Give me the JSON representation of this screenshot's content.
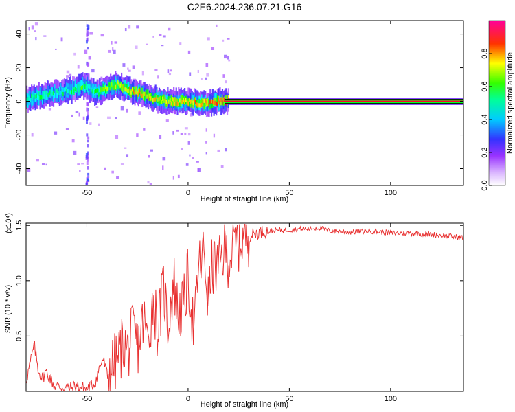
{
  "title": "C2E6.2024.236.07.21.G16",
  "chart_data": [
    {
      "type": "heatmap",
      "xlabel": "Height of straight line (km)",
      "ylabel": "Frequency (Hz)",
      "xlim": [
        -80,
        136
      ],
      "ylim": [
        -50,
        48
      ],
      "x_ticks": [
        -50,
        0,
        50,
        100
      ],
      "y_ticks": [
        -40,
        -20,
        0,
        20,
        40
      ],
      "colorbar": {
        "label": "Normalized spectral amplitude",
        "range": [
          0,
          1
        ],
        "ticks": [
          "0.0",
          "0.2",
          "0.4",
          "0.6",
          "0.8"
        ],
        "tick_values": [
          0,
          0.2,
          0.4,
          0.6,
          0.8
        ],
        "colors": [
          "#ffffff",
          "#a64dff",
          "#3333ff",
          "#00ffff",
          "#00ff00",
          "#ffff00",
          "#ff0000",
          "#ff0099"
        ]
      },
      "ridge": {
        "x": [
          -80,
          -75,
          -70,
          -65,
          -60,
          -55,
          -52,
          -50,
          -48,
          -45,
          -40,
          -35,
          -32,
          -28,
          -25,
          -20,
          -15,
          -10,
          -5,
          0,
          5,
          10,
          15,
          18,
          20,
          40,
          60,
          80,
          100,
          120,
          135
        ],
        "y": [
          1,
          3,
          4,
          5,
          6,
          8,
          9,
          9,
          6,
          5,
          8,
          10,
          8,
          6,
          5,
          3,
          1,
          0,
          0,
          0,
          -1,
          -1,
          0,
          0,
          0,
          0,
          0,
          0,
          0,
          0,
          0
        ],
        "intensity": [
          0.45,
          0.5,
          0.5,
          0.45,
          0.5,
          0.55,
          0.55,
          0.5,
          0.5,
          0.55,
          0.65,
          0.7,
          0.72,
          0.75,
          0.75,
          0.72,
          0.7,
          0.72,
          0.72,
          0.75,
          0.75,
          0.75,
          0.8,
          0.85,
          0.9,
          0.92,
          0.92,
          0.92,
          0.92,
          0.92,
          0.92
        ]
      }
    },
    {
      "type": "line",
      "xlabel": "Height of straight line (km)",
      "ylabel": "SNR (10 * v/v)",
      "yscale_label": "(x10⁴)",
      "xlim": [
        -80,
        136
      ],
      "ylim": [
        0,
        1.52
      ],
      "x_ticks": [
        -50,
        0,
        50,
        100
      ],
      "y_ticks": [
        "0.5",
        "1.0",
        "1.5"
      ],
      "y_tick_values": [
        0.5,
        1.0,
        1.5
      ],
      "color": "#e83030",
      "series": [
        {
          "x": [
            -80,
            -78,
            -76,
            -74,
            -72,
            -70,
            -66,
            -62,
            -58,
            -55,
            -50,
            -46,
            -44,
            -42,
            -40,
            -38,
            -35,
            -32,
            -30,
            -27,
            -25,
            -22,
            -20,
            -17,
            -15,
            -12,
            -10,
            -7,
            -5,
            -2,
            0,
            3,
            5,
            8,
            10,
            12,
            15,
            18,
            20,
            23,
            25,
            28,
            30,
            35,
            40,
            50,
            60,
            65,
            70,
            80,
            90,
            100,
            110,
            120,
            130,
            136
          ],
          "y": [
            0.1,
            0.25,
            0.42,
            0.2,
            0.12,
            0.18,
            0.05,
            0.04,
            0.03,
            0.05,
            0.02,
            0.08,
            0.2,
            0.3,
            0.15,
            0.22,
            0.28,
            0.45,
            0.35,
            0.55,
            0.4,
            0.65,
            0.45,
            0.85,
            0.55,
            0.95,
            0.6,
            1.0,
            0.7,
            0.78,
            1.05,
            0.5,
            1.1,
            1.25,
            0.8,
            1.15,
            1.1,
            1.3,
            1.2,
            1.32,
            1.35,
            1.42,
            1.4,
            1.44,
            1.45,
            1.46,
            1.47,
            1.48,
            1.45,
            1.44,
            1.45,
            1.43,
            1.43,
            1.42,
            1.4,
            1.39
          ]
        }
      ]
    }
  ]
}
